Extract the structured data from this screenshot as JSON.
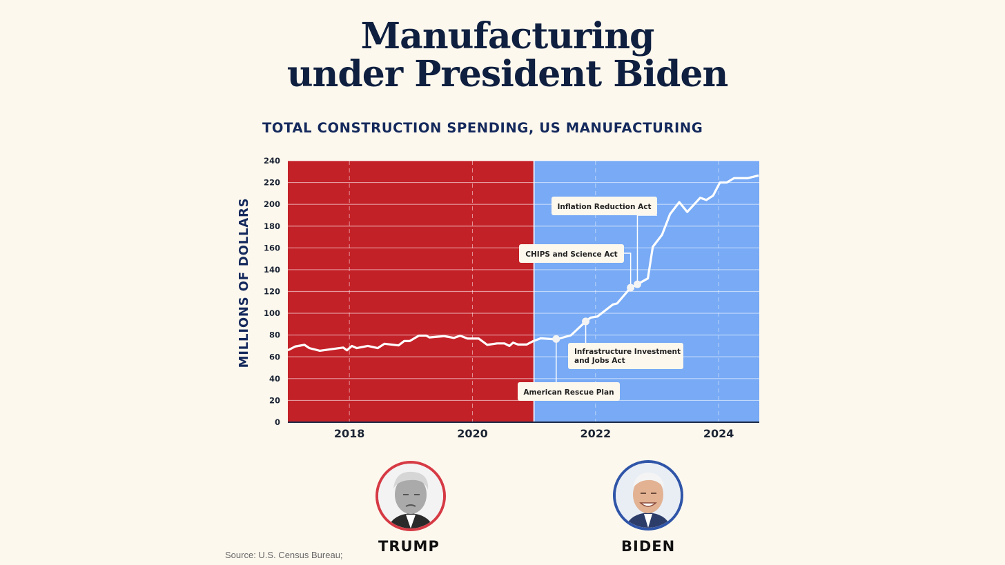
{
  "title_line1": "Manufacturing",
  "title_line2": "under President Biden",
  "source": "Source: U.S. Census Bureau;",
  "candidates": [
    {
      "name": "TRUMP",
      "color": "#c32128"
    },
    {
      "name": "BIDEN",
      "color": "#78aaf5"
    }
  ],
  "chart_data": {
    "type": "line",
    "title": "TOTAL CONSTRUCTION SPENDING, US MANUFACTURING",
    "xlabel": "",
    "ylabel": "MILLIONS OF DOLLARS",
    "xlim": [
      2017.0,
      2024.66
    ],
    "ylim": [
      0,
      240
    ],
    "yticks": [
      0,
      20,
      40,
      60,
      80,
      100,
      120,
      140,
      160,
      180,
      200,
      220,
      240
    ],
    "xticks": [
      2018,
      2020,
      2022,
      2024
    ],
    "xtick_labels": [
      "2018",
      "2020",
      "2022",
      "2024"
    ],
    "grid": true,
    "regions": [
      {
        "name": "Trump",
        "from": 2017.0,
        "to": 2021.0,
        "color": "#c32128"
      },
      {
        "name": "Biden",
        "from": 2021.0,
        "to": 2024.66,
        "color": "#78aaf5"
      }
    ],
    "series": [
      {
        "name": "Construction spending, manufacturing",
        "color": "#ffffff",
        "x": [
          2017.0,
          2017.12,
          2017.27,
          2017.35,
          2017.52,
          2017.9,
          2017.96,
          2018.04,
          2018.12,
          2018.3,
          2018.46,
          2018.57,
          2018.8,
          2018.89,
          2018.98,
          2019.13,
          2019.25,
          2019.3,
          2019.54,
          2019.7,
          2019.8,
          2019.92,
          2020.1,
          2020.24,
          2020.4,
          2020.52,
          2020.6,
          2020.66,
          2020.74,
          2020.88,
          2020.99,
          2021.11,
          2021.36,
          2021.6,
          2021.84,
          2021.92,
          2022.03,
          2022.28,
          2022.35,
          2022.57,
          2022.68,
          2022.85,
          2022.93,
          2023.08,
          2023.21,
          2023.36,
          2023.49,
          2023.7,
          2023.8,
          2023.91,
          2024.02,
          2024.13,
          2024.25,
          2024.47,
          2024.65
        ],
        "y": [
          66,
          69.5,
          71,
          68,
          65.6,
          68.5,
          66,
          70,
          68,
          70,
          68,
          72,
          70.5,
          74.5,
          74.5,
          79.5,
          79.5,
          77.8,
          79,
          77.4,
          79.4,
          76.8,
          76.8,
          71,
          72.3,
          72.3,
          70,
          73,
          71.3,
          71.3,
          74.5,
          77,
          76,
          79.8,
          92.5,
          96,
          97,
          108,
          109,
          123.5,
          126.6,
          132,
          161,
          172,
          191,
          202,
          193,
          206,
          204,
          208,
          220,
          220,
          224,
          224,
          226.5
        ]
      }
    ],
    "annotations": [
      {
        "label": "American Rescue Plan",
        "x": 2021.36,
        "y": 76.4
      },
      {
        "label": "Infrastructure Investment",
        "label2": "and Jobs Act",
        "x": 2021.84,
        "y": 92.5
      },
      {
        "label": "CHIPS and Science Act",
        "x": 2022.57,
        "y": 123.5
      },
      {
        "label": "Inflation Reduction Act",
        "x": 2022.68,
        "y": 126.6
      }
    ]
  }
}
